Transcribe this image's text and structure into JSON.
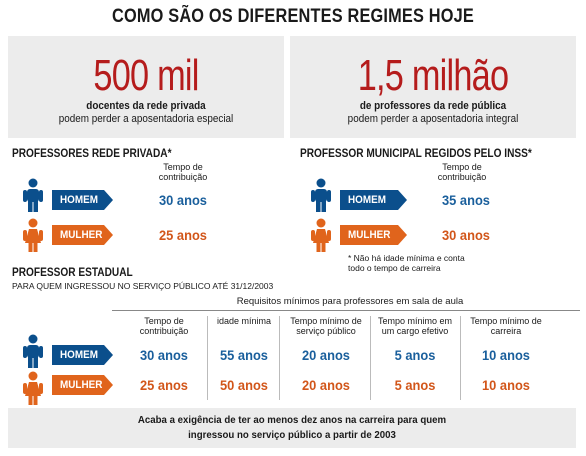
{
  "title": "COMO SÃO OS DIFERENTES REGIMES HOJE",
  "colors": {
    "blue": "#0b4f8c",
    "orange": "#e0641c",
    "red": "#b51c1c",
    "panel": "#ececec"
  },
  "icons": {
    "man": "man-figure-icon",
    "woman": "woman-figure-icon"
  },
  "stat_left": {
    "number": "500 mil",
    "line1": "docentes da rede privada",
    "line2": "podem perder a aposentadoria especial"
  },
  "stat_right": {
    "number": "1,5 milhão",
    "line1": "de professores da rede pública",
    "line2": "podem perder a aposentadoria integral"
  },
  "private": {
    "title": "PROFESSORES REDE PRIVADA*",
    "header": "Tempo de contribuição",
    "rows": [
      {
        "label": "HOMEM",
        "value": "30 anos"
      },
      {
        "label": "MULHER",
        "value": "25 anos"
      }
    ]
  },
  "municipal": {
    "title": "PROFESSOR MUNICIPAL REGIDOS PELO INSS*",
    "header": "Tempo de contribuição",
    "rows": [
      {
        "label": "HOMEM",
        "value": "35 anos"
      },
      {
        "label": "MULHER",
        "value": "30 anos"
      }
    ],
    "note": "* Não há idade mínima e conta todo o tempo de carreira"
  },
  "state": {
    "title": "PROFESSOR ESTADUAL",
    "subtitle": "PARA QUEM INGRESSOU NO SERVIÇO PÚBLICO ATÉ 31/12/2003",
    "requirements": "Requisitos mínimos para professores em sala de aula",
    "headers": [
      "Tempo de contribuição",
      "idade mínima",
      "Tempo mínimo de serviço público",
      "Tempo mínimo em um cargo efetivo",
      "Tempo mínimo de carreira"
    ],
    "rows": [
      {
        "label": "HOMEM",
        "values": [
          "30 anos",
          "55 anos",
          "20 anos",
          "5 anos",
          "10 anos"
        ]
      },
      {
        "label": "MULHER",
        "values": [
          "25 anos",
          "50 anos",
          "20 anos",
          "5 anos",
          "10 anos"
        ]
      }
    ],
    "footer_line1": "Acaba a exigência de ter ao menos dez anos na carreira para quem",
    "footer_line2": "ingressou no serviço público a partir de 2003"
  }
}
